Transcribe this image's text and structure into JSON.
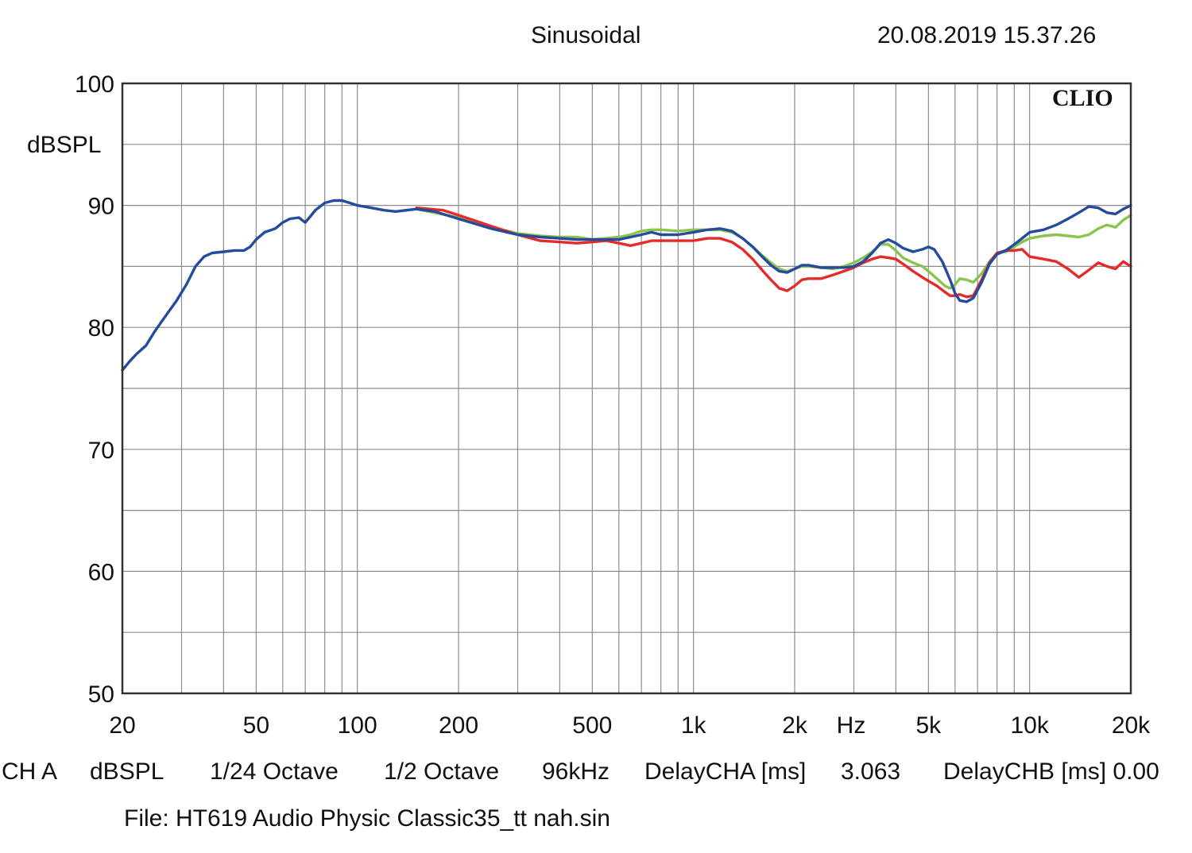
{
  "header": {
    "mode": "Sinusoidal",
    "timestamp": "20.08.2019 15.37.26"
  },
  "logo_text": "CLIO",
  "footer": {
    "channel": "CH A",
    "unit": "dBSPL",
    "resolution": "1/24 Octave",
    "smoothing": "1/2 Octave",
    "sample_rate": "96kHz",
    "delay_cha_label": "DelayCHA [ms]",
    "delay_cha_value": "3.063",
    "delay_chb_label": "DelayCHB [ms]",
    "delay_chb_value": "0.00",
    "file": "File: HT619 Audio Physic Classic35_tt nah.sin"
  },
  "chart_data": {
    "type": "line",
    "title": "",
    "xlabel": "Hz",
    "ylabel": "dBSPL",
    "xscale": "log",
    "xlim": [
      20,
      20000
    ],
    "ylim": [
      50,
      100
    ],
    "grid": true,
    "legend": "none",
    "x_tick_labels": [
      {
        "value": 20,
        "label": "20"
      },
      {
        "value": 50,
        "label": "50"
      },
      {
        "value": 100,
        "label": "100"
      },
      {
        "value": 200,
        "label": "200"
      },
      {
        "value": 500,
        "label": "500"
      },
      {
        "value": 1000,
        "label": "1k"
      },
      {
        "value": 2000,
        "label": "2k"
      },
      {
        "value": 5000,
        "label": "5k"
      },
      {
        "value": 10000,
        "label": "10k"
      },
      {
        "value": 20000,
        "label": "20k"
      }
    ],
    "y_tick_labels": [
      {
        "value": 50,
        "label": "50"
      },
      {
        "value": 60,
        "label": "60"
      },
      {
        "value": 70,
        "label": "70"
      },
      {
        "value": 80,
        "label": "80"
      },
      {
        "value": 90,
        "label": "90"
      },
      {
        "value": 100,
        "label": "100"
      }
    ],
    "series": [
      {
        "color": "#8cc34e",
        "points": [
          [
            150,
            89.7
          ],
          [
            200,
            89
          ],
          [
            250,
            88.2
          ],
          [
            300,
            87.7
          ],
          [
            350,
            87.5
          ],
          [
            400,
            87.4
          ],
          [
            450,
            87.4
          ],
          [
            500,
            87.2
          ],
          [
            550,
            87.3
          ],
          [
            600,
            87.4
          ],
          [
            650,
            87.6
          ],
          [
            700,
            87.9
          ],
          [
            750,
            88.0
          ],
          [
            800,
            88.0
          ],
          [
            900,
            87.9
          ],
          [
            1000,
            88.0
          ],
          [
            1100,
            88.0
          ],
          [
            1200,
            88.0
          ],
          [
            1300,
            87.8
          ],
          [
            1400,
            87.3
          ],
          [
            1500,
            86.6
          ],
          [
            1600,
            85.9
          ],
          [
            1700,
            85.3
          ],
          [
            1800,
            84.8
          ],
          [
            1900,
            84.6
          ],
          [
            2000,
            84.8
          ],
          [
            2100,
            85.0
          ],
          [
            2200,
            85.0
          ],
          [
            2400,
            84.9
          ],
          [
            2600,
            84.8
          ],
          [
            2800,
            85.0
          ],
          [
            3000,
            85.3
          ],
          [
            3200,
            85.7
          ],
          [
            3400,
            86.2
          ],
          [
            3600,
            86.8
          ],
          [
            3800,
            86.8
          ],
          [
            4000,
            86.3
          ],
          [
            4200,
            85.7
          ],
          [
            4500,
            85.3
          ],
          [
            4800,
            85.0
          ],
          [
            5000,
            84.6
          ],
          [
            5300,
            84.0
          ],
          [
            5600,
            83.4
          ],
          [
            5800,
            83.2
          ],
          [
            6000,
            83.5
          ],
          [
            6200,
            84.0
          ],
          [
            6500,
            83.9
          ],
          [
            6800,
            83.7
          ],
          [
            7200,
            84.4
          ],
          [
            7600,
            85.4
          ],
          [
            8000,
            86.1
          ],
          [
            8500,
            86.2
          ],
          [
            9000,
            86.6
          ],
          [
            9500,
            87.0
          ],
          [
            10000,
            87.3
          ],
          [
            11000,
            87.5
          ],
          [
            12000,
            87.6
          ],
          [
            13000,
            87.5
          ],
          [
            14000,
            87.4
          ],
          [
            15000,
            87.6
          ],
          [
            16000,
            88.1
          ],
          [
            17000,
            88.4
          ],
          [
            18000,
            88.2
          ],
          [
            19000,
            88.8
          ],
          [
            20000,
            89.2
          ]
        ]
      },
      {
        "color": "#e52a2a",
        "points": [
          [
            150,
            89.8
          ],
          [
            180,
            89.6
          ],
          [
            200,
            89.2
          ],
          [
            250,
            88.3
          ],
          [
            300,
            87.6
          ],
          [
            350,
            87.1
          ],
          [
            400,
            87.0
          ],
          [
            450,
            86.9
          ],
          [
            500,
            87.0
          ],
          [
            550,
            87.1
          ],
          [
            600,
            86.9
          ],
          [
            650,
            86.7
          ],
          [
            700,
            86.9
          ],
          [
            750,
            87.1
          ],
          [
            800,
            87.1
          ],
          [
            900,
            87.1
          ],
          [
            1000,
            87.1
          ],
          [
            1100,
            87.3
          ],
          [
            1200,
            87.3
          ],
          [
            1300,
            87.0
          ],
          [
            1400,
            86.4
          ],
          [
            1500,
            85.6
          ],
          [
            1600,
            84.7
          ],
          [
            1700,
            83.9
          ],
          [
            1800,
            83.2
          ],
          [
            1900,
            83.0
          ],
          [
            2000,
            83.4
          ],
          [
            2100,
            83.9
          ],
          [
            2200,
            84.0
          ],
          [
            2400,
            84.0
          ],
          [
            2600,
            84.3
          ],
          [
            2800,
            84.6
          ],
          [
            3000,
            84.9
          ],
          [
            3200,
            85.3
          ],
          [
            3400,
            85.6
          ],
          [
            3600,
            85.8
          ],
          [
            3800,
            85.7
          ],
          [
            4000,
            85.6
          ],
          [
            4200,
            85.2
          ],
          [
            4500,
            84.6
          ],
          [
            4800,
            84.1
          ],
          [
            5000,
            83.8
          ],
          [
            5300,
            83.4
          ],
          [
            5600,
            82.9
          ],
          [
            5800,
            82.6
          ],
          [
            6000,
            82.6
          ],
          [
            6200,
            82.7
          ],
          [
            6500,
            82.5
          ],
          [
            6800,
            82.6
          ],
          [
            7200,
            83.9
          ],
          [
            7600,
            85.3
          ],
          [
            8000,
            86.1
          ],
          [
            8500,
            86.3
          ],
          [
            9000,
            86.3
          ],
          [
            9500,
            86.4
          ],
          [
            10000,
            85.8
          ],
          [
            11000,
            85.6
          ],
          [
            12000,
            85.4
          ],
          [
            13000,
            84.8
          ],
          [
            14000,
            84.1
          ],
          [
            15000,
            84.7
          ],
          [
            16000,
            85.3
          ],
          [
            17000,
            85.0
          ],
          [
            18000,
            84.8
          ],
          [
            19000,
            85.4
          ],
          [
            20000,
            85.0
          ]
        ]
      },
      {
        "color": "#244b9c",
        "points": [
          [
            20,
            76.5
          ],
          [
            21,
            77.2
          ],
          [
            22,
            77.8
          ],
          [
            23.5,
            78.5
          ],
          [
            25,
            79.7
          ],
          [
            27,
            81.0
          ],
          [
            29,
            82.2
          ],
          [
            31,
            83.5
          ],
          [
            33,
            85.0
          ],
          [
            35,
            85.8
          ],
          [
            37,
            86.1
          ],
          [
            40,
            86.2
          ],
          [
            43,
            86.3
          ],
          [
            46,
            86.3
          ],
          [
            48,
            86.6
          ],
          [
            50,
            87.2
          ],
          [
            53,
            87.8
          ],
          [
            57,
            88.1
          ],
          [
            60,
            88.6
          ],
          [
            63,
            88.9
          ],
          [
            67,
            89.0
          ],
          [
            70,
            88.6
          ],
          [
            72,
            89.0
          ],
          [
            75,
            89.6
          ],
          [
            80,
            90.2
          ],
          [
            85,
            90.4
          ],
          [
            90,
            90.4
          ],
          [
            95,
            90.2
          ],
          [
            100,
            90.0
          ],
          [
            110,
            89.8
          ],
          [
            120,
            89.6
          ],
          [
            130,
            89.5
          ],
          [
            140,
            89.6
          ],
          [
            150,
            89.7
          ],
          [
            170,
            89.5
          ],
          [
            200,
            88.9
          ],
          [
            250,
            88.1
          ],
          [
            300,
            87.6
          ],
          [
            350,
            87.4
          ],
          [
            400,
            87.3
          ],
          [
            450,
            87.2
          ],
          [
            500,
            87.2
          ],
          [
            550,
            87.2
          ],
          [
            600,
            87.2
          ],
          [
            650,
            87.4
          ],
          [
            700,
            87.6
          ],
          [
            750,
            87.8
          ],
          [
            800,
            87.6
          ],
          [
            850,
            87.6
          ],
          [
            900,
            87.6
          ],
          [
            1000,
            87.8
          ],
          [
            1100,
            88.0
          ],
          [
            1200,
            88.1
          ],
          [
            1300,
            87.9
          ],
          [
            1400,
            87.3
          ],
          [
            1500,
            86.6
          ],
          [
            1600,
            85.8
          ],
          [
            1700,
            85.1
          ],
          [
            1800,
            84.6
          ],
          [
            1900,
            84.5
          ],
          [
            2000,
            84.8
          ],
          [
            2100,
            85.1
          ],
          [
            2200,
            85.1
          ],
          [
            2400,
            84.9
          ],
          [
            2600,
            84.9
          ],
          [
            2800,
            84.9
          ],
          [
            3000,
            85.0
          ],
          [
            3200,
            85.4
          ],
          [
            3400,
            86.1
          ],
          [
            3600,
            86.9
          ],
          [
            3800,
            87.2
          ],
          [
            4000,
            86.9
          ],
          [
            4200,
            86.5
          ],
          [
            4500,
            86.2
          ],
          [
            4800,
            86.4
          ],
          [
            5000,
            86.6
          ],
          [
            5200,
            86.4
          ],
          [
            5500,
            85.4
          ],
          [
            5800,
            83.9
          ],
          [
            6000,
            82.8
          ],
          [
            6200,
            82.2
          ],
          [
            6500,
            82.1
          ],
          [
            6800,
            82.4
          ],
          [
            7200,
            83.7
          ],
          [
            7600,
            85.2
          ],
          [
            8000,
            86.0
          ],
          [
            8500,
            86.3
          ],
          [
            9000,
            86.8
          ],
          [
            9500,
            87.3
          ],
          [
            10000,
            87.8
          ],
          [
            11000,
            88.0
          ],
          [
            12000,
            88.4
          ],
          [
            13000,
            88.9
          ],
          [
            14000,
            89.4
          ],
          [
            15000,
            89.9
          ],
          [
            16000,
            89.8
          ],
          [
            17000,
            89.4
          ],
          [
            18000,
            89.3
          ],
          [
            19000,
            89.7
          ],
          [
            20000,
            90.0
          ]
        ]
      }
    ]
  }
}
